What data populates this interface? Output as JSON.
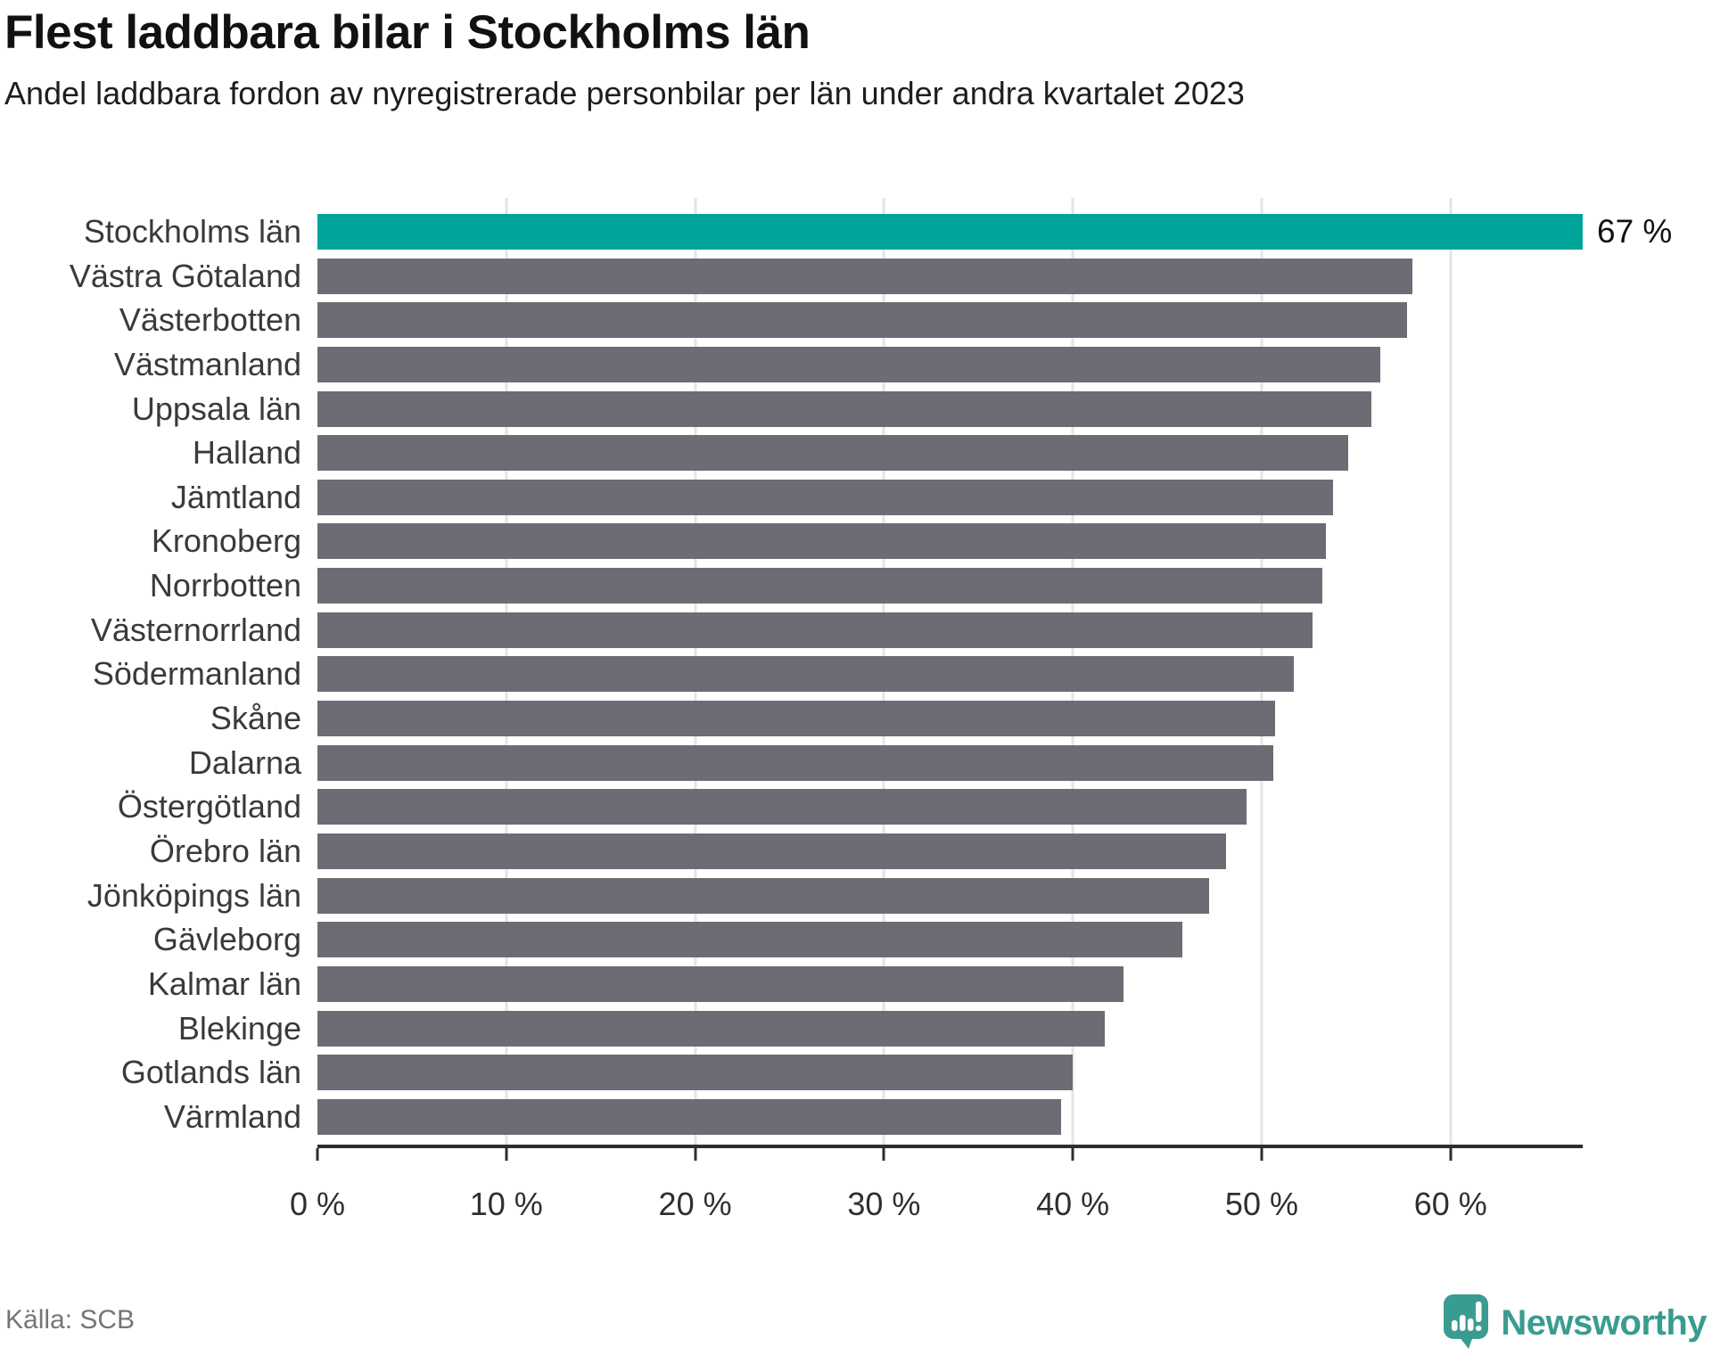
{
  "header": {
    "title": "Flest laddbara bilar i Stockholms län",
    "subtitle": "Andel laddbara fordon av nyregistrerade personbilar per län under andra kvartalet 2023"
  },
  "footer": {
    "source": "Källa: SCB",
    "brand": "Newsworthy"
  },
  "colors": {
    "highlight_bar": "#00a49a",
    "default_bar": "#6c6c74",
    "gridline": "#e4e4e4",
    "axis": "#2e2e2e",
    "brand_teal": "#3a9c90"
  },
  "chart_data": {
    "type": "bar",
    "orientation": "horizontal",
    "title": "Flest laddbara bilar i Stockholms län",
    "subtitle": "Andel laddbara fordon av nyregistrerade personbilar per län under andra kvartalet 2023",
    "xlabel": "",
    "ylabel": "",
    "xlim": [
      0,
      67
    ],
    "grid": "vertical",
    "x_tick_values": [
      0,
      10,
      20,
      30,
      40,
      50,
      60
    ],
    "x_tick_labels": [
      "0 %",
      "10 %",
      "20 %",
      "30 %",
      "40 %",
      "50 %",
      "60 %"
    ],
    "categories": [
      "Stockholms län",
      "Västra Götaland",
      "Västerbotten",
      "Västmanland",
      "Uppsala län",
      "Halland",
      "Jämtland",
      "Kronoberg",
      "Norrbotten",
      "Västernorrland",
      "Södermanland",
      "Skåne",
      "Dalarna",
      "Östergötland",
      "Örebro län",
      "Jönköpings län",
      "Gävleborg",
      "Kalmar län",
      "Blekinge",
      "Gotlands län",
      "Värmland"
    ],
    "values": [
      67,
      58,
      57.7,
      56.3,
      55.8,
      54.6,
      53.8,
      53.4,
      53.2,
      52.7,
      51.7,
      50.7,
      50.6,
      49.2,
      48.1,
      47.2,
      45.8,
      42.7,
      41.7,
      40,
      39.4
    ],
    "highlight_index": 0,
    "annotations": [
      {
        "target": "Stockholms län",
        "text": "67 %"
      }
    ],
    "legend": null
  }
}
